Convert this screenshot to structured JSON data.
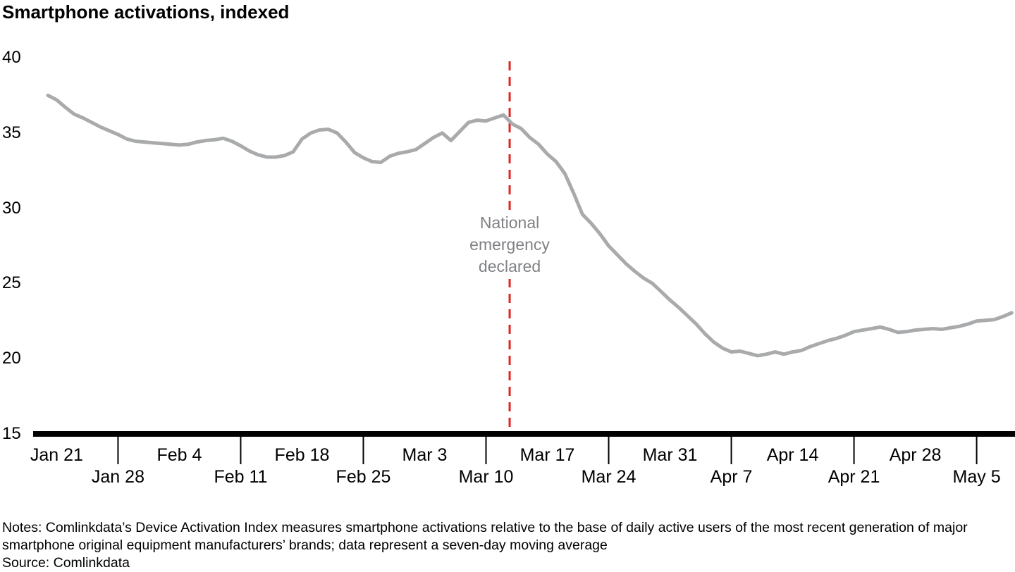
{
  "title": "Smartphone activations, indexed",
  "chart_data": {
    "type": "line",
    "title": "Smartphone activations, indexed",
    "x0_date": "Jan 20",
    "x_step": "1 day",
    "values": [
      37.5,
      37.2,
      36.7,
      36.25,
      36.0,
      35.7,
      35.4,
      35.15,
      34.9,
      34.6,
      34.45,
      34.4,
      34.35,
      34.3,
      34.25,
      34.2,
      34.25,
      34.4,
      34.5,
      34.55,
      34.65,
      34.45,
      34.15,
      33.8,
      33.55,
      33.4,
      33.4,
      33.5,
      33.75,
      34.6,
      35.0,
      35.2,
      35.25,
      35.0,
      34.4,
      33.7,
      33.35,
      33.1,
      33.05,
      33.45,
      33.65,
      33.75,
      33.9,
      34.3,
      34.7,
      35.0,
      34.5,
      35.1,
      35.7,
      35.85,
      35.8,
      36.0,
      36.2,
      35.6,
      35.3,
      34.7,
      34.25,
      33.6,
      33.1,
      32.3,
      31.0,
      29.6,
      29.0,
      28.3,
      27.5,
      26.9,
      26.3,
      25.8,
      25.35,
      25.0,
      24.45,
      23.9,
      23.4,
      22.85,
      22.3,
      21.65,
      21.1,
      20.7,
      20.45,
      20.5,
      20.35,
      20.2,
      20.3,
      20.45,
      20.3,
      20.45,
      20.55,
      20.8,
      21.0,
      21.2,
      21.35,
      21.55,
      21.8,
      21.9,
      22.0,
      22.1,
      21.95,
      21.75,
      21.8,
      21.9,
      21.95,
      22.0,
      21.95,
      22.05,
      22.15,
      22.3,
      22.5,
      22.55,
      22.6,
      22.8,
      23.05
    ],
    "ylim": [
      15,
      40
    ],
    "y_ticks": [
      40,
      35,
      30,
      25,
      20,
      15
    ],
    "x_ticks_row1": [
      {
        "label": "Jan 21",
        "day": 1
      },
      {
        "label": "Feb 4",
        "day": 15
      },
      {
        "label": "Feb 18",
        "day": 29
      },
      {
        "label": "Mar 3",
        "day": 43
      },
      {
        "label": "Mar 17",
        "day": 57
      },
      {
        "label": "Mar 31",
        "day": 71
      },
      {
        "label": "Apr 14",
        "day": 85
      },
      {
        "label": "Apr 28",
        "day": 99
      }
    ],
    "x_ticks_row2": [
      {
        "label": "Jan 28",
        "day": 8
      },
      {
        "label": "Feb 11",
        "day": 22
      },
      {
        "label": "Feb 25",
        "day": 36
      },
      {
        "label": "Mar 10",
        "day": 50
      },
      {
        "label": "Mar 24",
        "day": 64
      },
      {
        "label": "Apr 7",
        "day": 78
      },
      {
        "label": "Apr 21",
        "day": 92
      },
      {
        "label": "May 5",
        "day": 106
      }
    ],
    "annotation": {
      "label_lines": [
        "National",
        "emergency",
        "declared"
      ],
      "date_label": "Mar 13",
      "day_index": 52.7
    },
    "colors": {
      "series_line": "#a8aaac",
      "event_line": "#e02421",
      "annotation_text": "#808285",
      "axis": "#000000"
    },
    "grid": "off",
    "legend": "none"
  },
  "notes": {
    "line1": "Notes: Comlinkdata’s Device Activation Index measures smartphone activations relative to the base of daily active users of the most recent generation of major",
    "line2": "smartphone original equipment manufacturers’ brands; data represent a seven-day moving average",
    "source": "Source: Comlinkdata"
  }
}
